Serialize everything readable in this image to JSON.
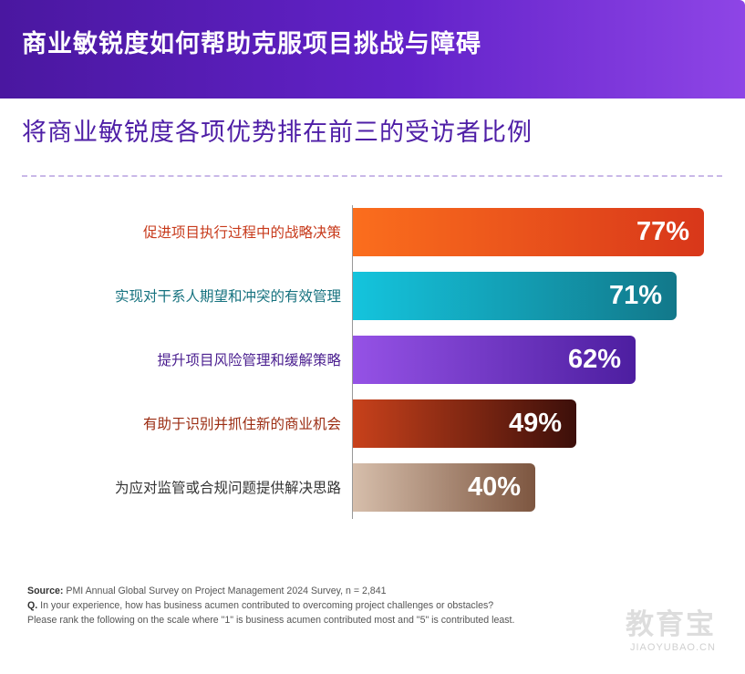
{
  "header": {
    "title": "商业敏锐度如何帮助克服项目挑战与障碍"
  },
  "chart_data": {
    "type": "bar",
    "orientation": "horizontal",
    "title": "将商业敏锐度各项优势排在前三的受访者比例",
    "categories": [
      "促进项目执行过程中的战略决策",
      "实现对干系人期望和冲突的有效管理",
      "提升项目风险管理和缓解策略",
      "有助于识别并抓住新的商业机会",
      "为应对监管或合规问题提供解决思路"
    ],
    "values": [
      77,
      71,
      62,
      49,
      40
    ],
    "value_labels": [
      "77%",
      "71%",
      "62%",
      "49%",
      "40%"
    ],
    "xlim": [
      0,
      100
    ],
    "label_colors": [
      "#c7391a",
      "#16727f",
      "#4a1e8f",
      "#9b2c12",
      "#333333"
    ],
    "bar_gradients": [
      [
        "#fb6e1d",
        "#d8371a"
      ],
      [
        "#14c4dd",
        "#12788a"
      ],
      [
        "#9552e6",
        "#4d1ea0"
      ],
      [
        "#c8411b",
        "#3c0f0a"
      ],
      [
        "#d6beab",
        "#7d5640"
      ]
    ]
  },
  "footer": {
    "source_label": "Source:",
    "source_text": "PMI Annual Global Survey on Project Management 2024 Survey, n = 2,841",
    "q_label": "Q.",
    "q_text": "In your experience, how has business acumen contributed to overcoming project challenges or obstacles?",
    "q_text2": "Please rank the following on the scale where \"1\" is business acumen contributed most and \"5\" is contributed least."
  },
  "watermark": {
    "cn": "教育宝",
    "en": "JIAOYUBAO.CN"
  }
}
